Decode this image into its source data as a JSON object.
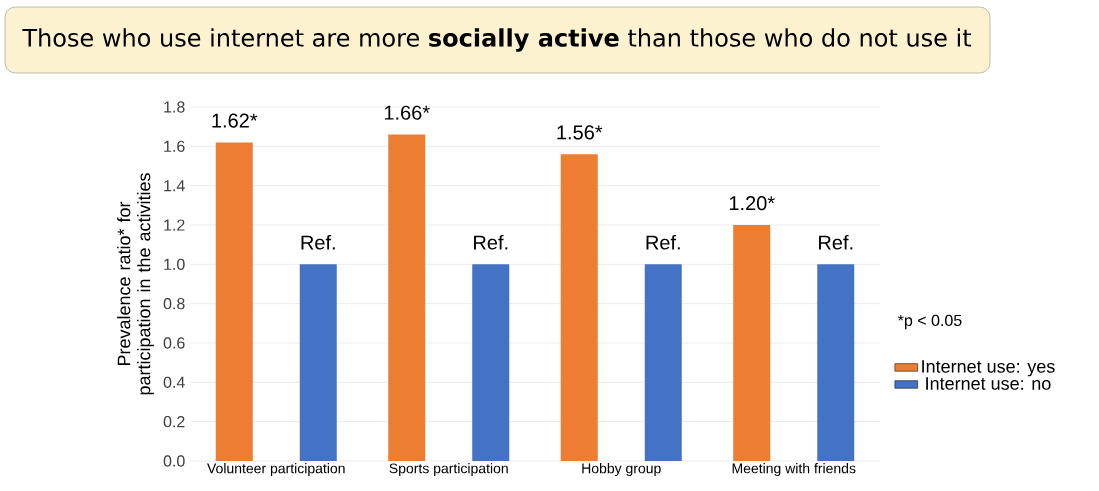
{
  "chart_data": {
    "type": "bar",
    "title": "Those who use internet are more **socially active** than those who do not use it",
    "ylabel": "Prevalence ratio* for participation in the activities",
    "categories": [
      "Volunteer participation",
      "Sports participation",
      "Hobby group",
      "Meeting with friends"
    ],
    "series": [
      {
        "name": "Internet use: yes",
        "color": "#ed7d31",
        "values": [
          1.62,
          1.66,
          1.56,
          1.2
        ],
        "value_labels": [
          "1.62*",
          "1.66*",
          "1.56*",
          "1.20*"
        ]
      },
      {
        "name": "Internet use: no",
        "color": "#4472c4",
        "values": [
          1.0,
          1.0,
          1.0,
          1.0
        ],
        "value_labels": [
          "Ref.",
          "Ref.",
          "Ref.",
          "Ref."
        ]
      }
    ],
    "ylim": [
      0,
      1.8
    ],
    "yticks": [
      {
        "value": 0,
        "label": "0.0"
      },
      0.2,
      0.4,
      0.6,
      0.8,
      {
        "value": 1,
        "label": "1.0"
      },
      1.2,
      1.4,
      1.6,
      1.8
    ],
    "grid": "y",
    "legend": "right",
    "annotations": [
      "*p < 0.05"
    ]
  }
}
